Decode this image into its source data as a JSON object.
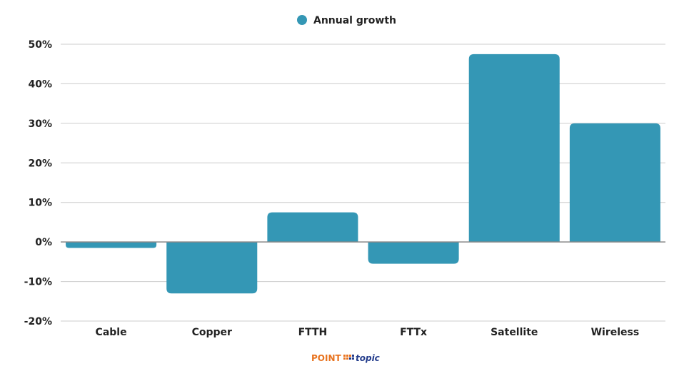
{
  "chart_data": {
    "type": "bar",
    "categories": [
      "Cable",
      "Copper",
      "FTTH",
      "FTTx",
      "Satellite",
      "Wireless"
    ],
    "series": [
      {
        "name": "Annual growth",
        "values": [
          -1.5,
          -13,
          7.5,
          -5.5,
          47.5,
          30
        ]
      }
    ],
    "title": "",
    "xlabel": "",
    "ylabel": "",
    "ylim": [
      -20,
      50
    ],
    "yticks": [
      50,
      40,
      30,
      20,
      10,
      0,
      -10,
      -20
    ],
    "ytick_labels": [
      "50%",
      "40%",
      "30%",
      "20%",
      "10%",
      "0%",
      "-10%",
      "-20%"
    ],
    "grid": true,
    "legend_position": "top-center",
    "bar_color": "#3497b5",
    "grid_color": "#cccccc",
    "axis_color": "#888888"
  },
  "logo": {
    "part1": "POINT",
    "part2": "topic",
    "color1": "#e8731f",
    "color2": "#233c8c"
  }
}
